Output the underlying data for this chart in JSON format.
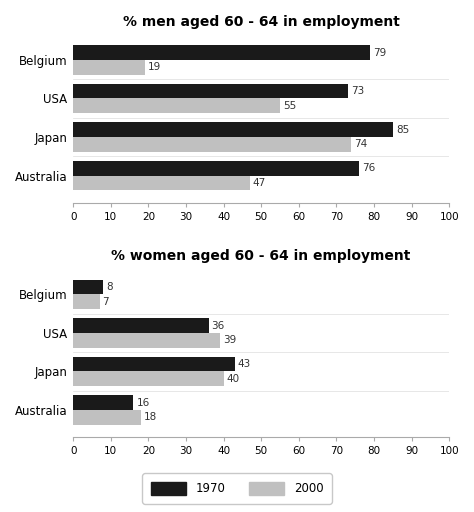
{
  "men_title": "% men aged 60 - 64 in employment",
  "women_title": "% women aged 60 - 64 in employment",
  "countries": [
    "Australia",
    "Japan",
    "USA",
    "Belgium"
  ],
  "men_1970": [
    76,
    85,
    73,
    79
  ],
  "men_2000": [
    47,
    74,
    55,
    19
  ],
  "women_1970": [
    16,
    43,
    36,
    8
  ],
  "women_2000": [
    18,
    40,
    39,
    7
  ],
  "color_1970": "#1a1a1a",
  "color_2000": "#c0c0c0",
  "xlim": [
    0,
    100
  ],
  "xticks": [
    0,
    10,
    20,
    30,
    40,
    50,
    60,
    70,
    80,
    90,
    100
  ],
  "bar_height": 0.38,
  "label_fontsize": 7.5,
  "title_fontsize": 10,
  "tick_fontsize": 7.5,
  "legend_1970": "1970",
  "legend_2000": "2000",
  "bg_color": "#ffffff"
}
